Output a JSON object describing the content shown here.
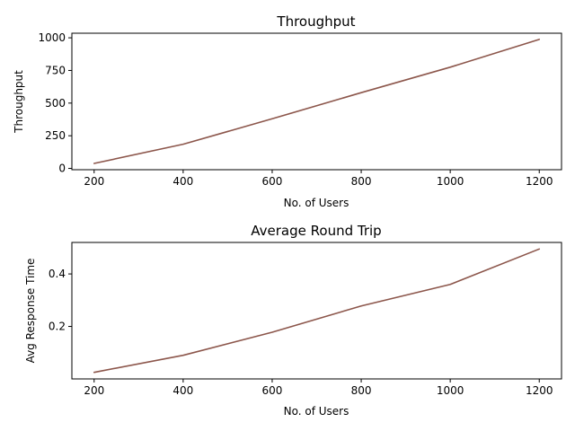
{
  "chart_data": [
    {
      "type": "line",
      "title": "Throughput",
      "xlabel": "No. of Users",
      "ylabel": "Throughput",
      "x": [
        200,
        400,
        600,
        800,
        1000,
        1200
      ],
      "xticks": [
        "200",
        "400",
        "600",
        "800",
        "1000",
        "1200"
      ],
      "yticks": [
        "0",
        "250",
        "500",
        "750",
        "1000"
      ],
      "xlim": [
        150,
        1250
      ],
      "ylim": [
        -10,
        1035
      ],
      "grid": false,
      "series": [
        {
          "color": "#8c564b",
          "values": [
            38,
            185,
            380,
            580,
            775,
            988
          ]
        }
      ]
    },
    {
      "type": "line",
      "title": "Average Round Trip",
      "xlabel": "No. of Users",
      "ylabel": "Avg Response Time",
      "x": [
        200,
        400,
        600,
        800,
        1000,
        1200
      ],
      "xticks": [
        "200",
        "400",
        "600",
        "800",
        "1000",
        "1200"
      ],
      "yticks": [
        "0.2",
        "0.4"
      ],
      "xlim": [
        150,
        1250
      ],
      "ylim": [
        0.0,
        0.52
      ],
      "grid": false,
      "series": [
        {
          "color": "#8c564b",
          "values": [
            0.025,
            0.09,
            0.178,
            0.278,
            0.36,
            0.495
          ]
        }
      ]
    }
  ]
}
